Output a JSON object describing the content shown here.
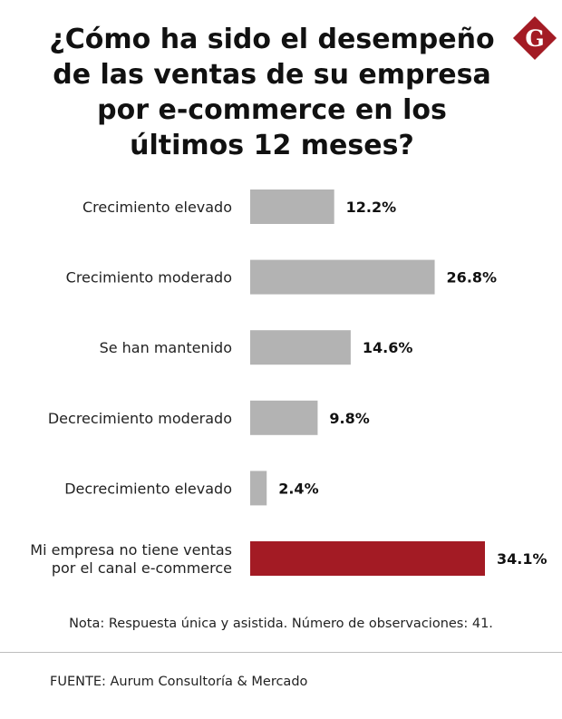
{
  "title": "¿Cómo ha sido el desempeño de las ventas de su empresa por e-commerce en los últimos 12 meses?",
  "logo": {
    "letter": "G",
    "color": "#a31b24"
  },
  "chart_data": {
    "type": "bar",
    "orientation": "horizontal",
    "title": "¿Cómo ha sido el desempeño de las ventas de su empresa por e-commerce en los últimos 12 meses?",
    "categories": [
      [
        "Crecimiento elevado"
      ],
      [
        "Crecimiento moderado"
      ],
      [
        "Se han mantenido"
      ],
      [
        "Decrecimiento moderado"
      ],
      [
        "Decrecimiento elevado"
      ],
      [
        "Mi empresa no tiene ventas",
        "por el canal e-commerce"
      ]
    ],
    "values": [
      12.2,
      26.8,
      14.6,
      9.8,
      2.4,
      34.1
    ],
    "value_labels": [
      "12.2%",
      "26.8%",
      "14.6%",
      "9.8%",
      "2.4%",
      "34.1%"
    ],
    "unit": "%",
    "colors": [
      "#b3b3b3",
      "#b3b3b3",
      "#b3b3b3",
      "#b3b3b3",
      "#b3b3b3",
      "#a31b24"
    ],
    "xlim": [
      0,
      34.1
    ],
    "grid": false,
    "legend": "none"
  },
  "note": "Nota: Respuesta única y asistida. Número de observaciones: 41.",
  "source": "FUENTE: Aurum Consultoría & Mercado"
}
